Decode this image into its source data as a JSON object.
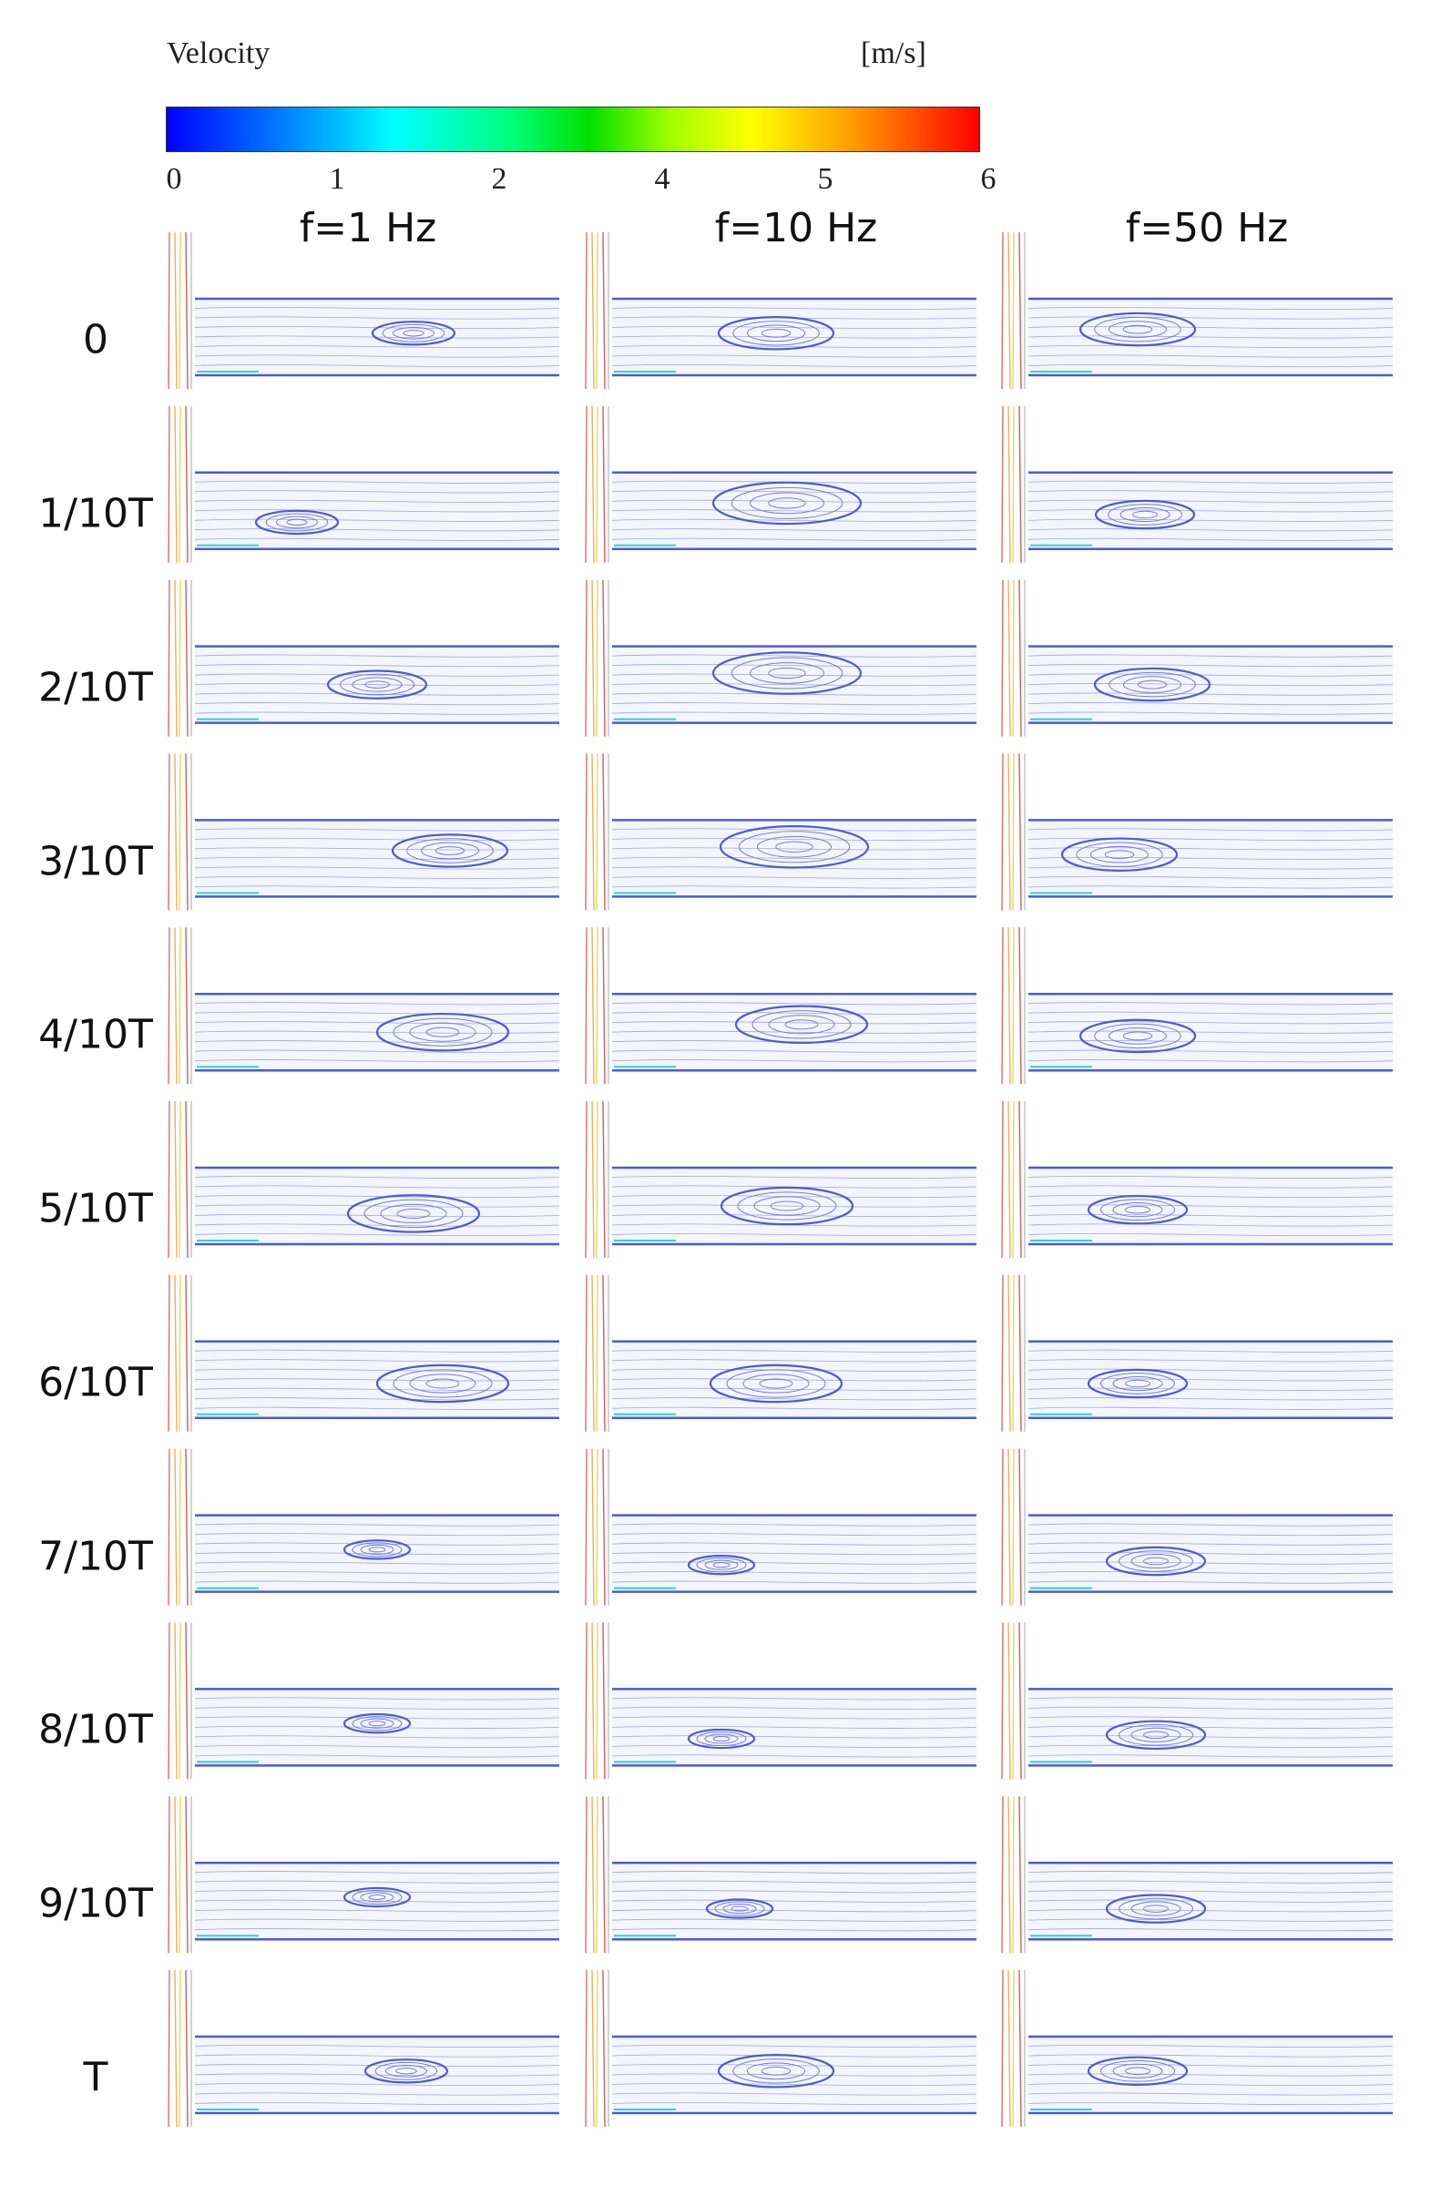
{
  "colorbar": {
    "title": "Velocity",
    "unit": "[m/s]",
    "ticks": [
      "0",
      "1",
      "2",
      "4",
      "5",
      "6"
    ],
    "colors": [
      "#0000ff",
      "#00ffff",
      "#00e000",
      "#ffff00",
      "#ff0000"
    ]
  },
  "columns": [
    {
      "label": "f=1 Hz"
    },
    {
      "label": "f=10 Hz"
    },
    {
      "label": "f=50 Hz"
    }
  ],
  "rows": [
    {
      "label": "0"
    },
    {
      "label": "1/10T"
    },
    {
      "label": "2/10T"
    },
    {
      "label": "3/10T"
    },
    {
      "label": "4/10T"
    },
    {
      "label": "5/10T"
    },
    {
      "label": "6/10T"
    },
    {
      "label": "7/10T"
    },
    {
      "label": "8/10T"
    },
    {
      "label": "9/10T"
    },
    {
      "label": "T"
    }
  ],
  "vortices": [
    [
      [
        0.6,
        0.45,
        0.25
      ],
      [
        0.45,
        0.45,
        0.35
      ],
      [
        0.3,
        0.4,
        0.35
      ]
    ],
    [
      [
        0.28,
        0.65,
        0.25
      ],
      [
        0.48,
        0.4,
        0.45
      ],
      [
        0.32,
        0.55,
        0.3
      ]
    ],
    [
      [
        0.5,
        0.5,
        0.3
      ],
      [
        0.48,
        0.35,
        0.45
      ],
      [
        0.34,
        0.5,
        0.35
      ]
    ],
    [
      [
        0.7,
        0.4,
        0.35
      ],
      [
        0.5,
        0.35,
        0.45
      ],
      [
        0.25,
        0.45,
        0.35
      ]
    ],
    [
      [
        0.68,
        0.5,
        0.4
      ],
      [
        0.52,
        0.4,
        0.4
      ],
      [
        0.3,
        0.55,
        0.35
      ]
    ],
    [
      [
        0.6,
        0.6,
        0.4
      ],
      [
        0.48,
        0.5,
        0.4
      ],
      [
        0.3,
        0.55,
        0.3
      ]
    ],
    [
      [
        0.68,
        0.55,
        0.4
      ],
      [
        0.45,
        0.55,
        0.4
      ],
      [
        0.3,
        0.55,
        0.3
      ]
    ],
    [
      [
        0.5,
        0.45,
        0.2
      ],
      [
        0.3,
        0.65,
        0.2
      ],
      [
        0.35,
        0.6,
        0.3
      ]
    ],
    [
      [
        0.5,
        0.45,
        0.2
      ],
      [
        0.3,
        0.65,
        0.2
      ],
      [
        0.35,
        0.6,
        0.3
      ]
    ],
    [
      [
        0.5,
        0.45,
        0.2
      ],
      [
        0.35,
        0.6,
        0.2
      ],
      [
        0.35,
        0.6,
        0.3
      ]
    ],
    [
      [
        0.58,
        0.45,
        0.25
      ],
      [
        0.45,
        0.45,
        0.35
      ],
      [
        0.3,
        0.45,
        0.3
      ]
    ]
  ]
}
